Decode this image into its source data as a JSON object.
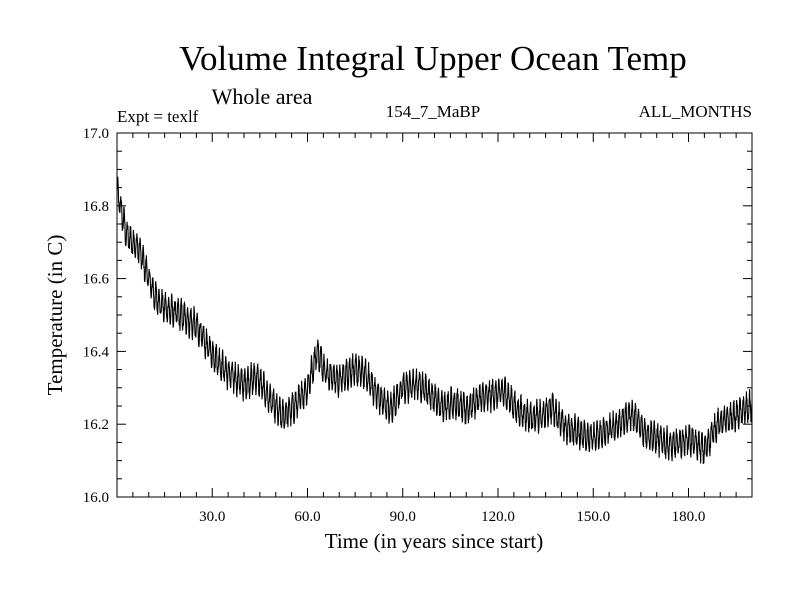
{
  "chart_data": {
    "type": "line",
    "title": "Volume Integral Upper Ocean Temp",
    "subtitle": "Whole area",
    "annotations": {
      "left": "Expt = texlf",
      "center": "154_7_MaBP",
      "right": "ALL_MONTHS"
    },
    "xlabel": "Time (in years since start)",
    "ylabel": "Temperature (in C)",
    "xlim": [
      0,
      200
    ],
    "ylim": [
      16.0,
      17.0
    ],
    "xticks": [
      30,
      60,
      90,
      120,
      150,
      180
    ],
    "xtick_labels": [
      "30.0",
      "60.0",
      "90.0",
      "120.0",
      "150.0",
      "180.0"
    ],
    "yticks": [
      16.0,
      16.2,
      16.4,
      16.6,
      16.8,
      17.0
    ],
    "ytick_labels": [
      "16.0",
      "16.2",
      "16.4",
      "16.6",
      "16.8",
      "17.0"
    ],
    "grid": false,
    "seasonal_amplitude": 0.035,
    "series": [
      {
        "name": "temperature",
        "color": "#000000",
        "trend": [
          [
            0,
            16.84
          ],
          [
            3,
            16.72
          ],
          [
            7,
            16.68
          ],
          [
            10,
            16.6
          ],
          [
            12,
            16.55
          ],
          [
            15,
            16.52
          ],
          [
            20,
            16.5
          ],
          [
            25,
            16.47
          ],
          [
            28,
            16.42
          ],
          [
            32,
            16.37
          ],
          [
            35,
            16.34
          ],
          [
            40,
            16.31
          ],
          [
            44,
            16.33
          ],
          [
            48,
            16.27
          ],
          [
            52,
            16.22
          ],
          [
            56,
            16.25
          ],
          [
            60,
            16.3
          ],
          [
            63,
            16.4
          ],
          [
            66,
            16.34
          ],
          [
            70,
            16.32
          ],
          [
            74,
            16.35
          ],
          [
            78,
            16.34
          ],
          [
            82,
            16.28
          ],
          [
            86,
            16.24
          ],
          [
            90,
            16.3
          ],
          [
            95,
            16.31
          ],
          [
            98,
            16.29
          ],
          [
            102,
            16.25
          ],
          [
            106,
            16.26
          ],
          [
            110,
            16.24
          ],
          [
            114,
            16.27
          ],
          [
            118,
            16.28
          ],
          [
            122,
            16.29
          ],
          [
            126,
            16.24
          ],
          [
            130,
            16.22
          ],
          [
            134,
            16.22
          ],
          [
            137,
            16.25
          ],
          [
            141,
            16.19
          ],
          [
            145,
            16.18
          ],
          [
            150,
            16.16
          ],
          [
            154,
            16.18
          ],
          [
            158,
            16.2
          ],
          [
            162,
            16.23
          ],
          [
            166,
            16.18
          ],
          [
            170,
            16.16
          ],
          [
            175,
            16.14
          ],
          [
            180,
            16.16
          ],
          [
            185,
            16.13
          ],
          [
            189,
            16.2
          ],
          [
            194,
            16.22
          ],
          [
            200,
            16.25
          ]
        ]
      }
    ]
  }
}
